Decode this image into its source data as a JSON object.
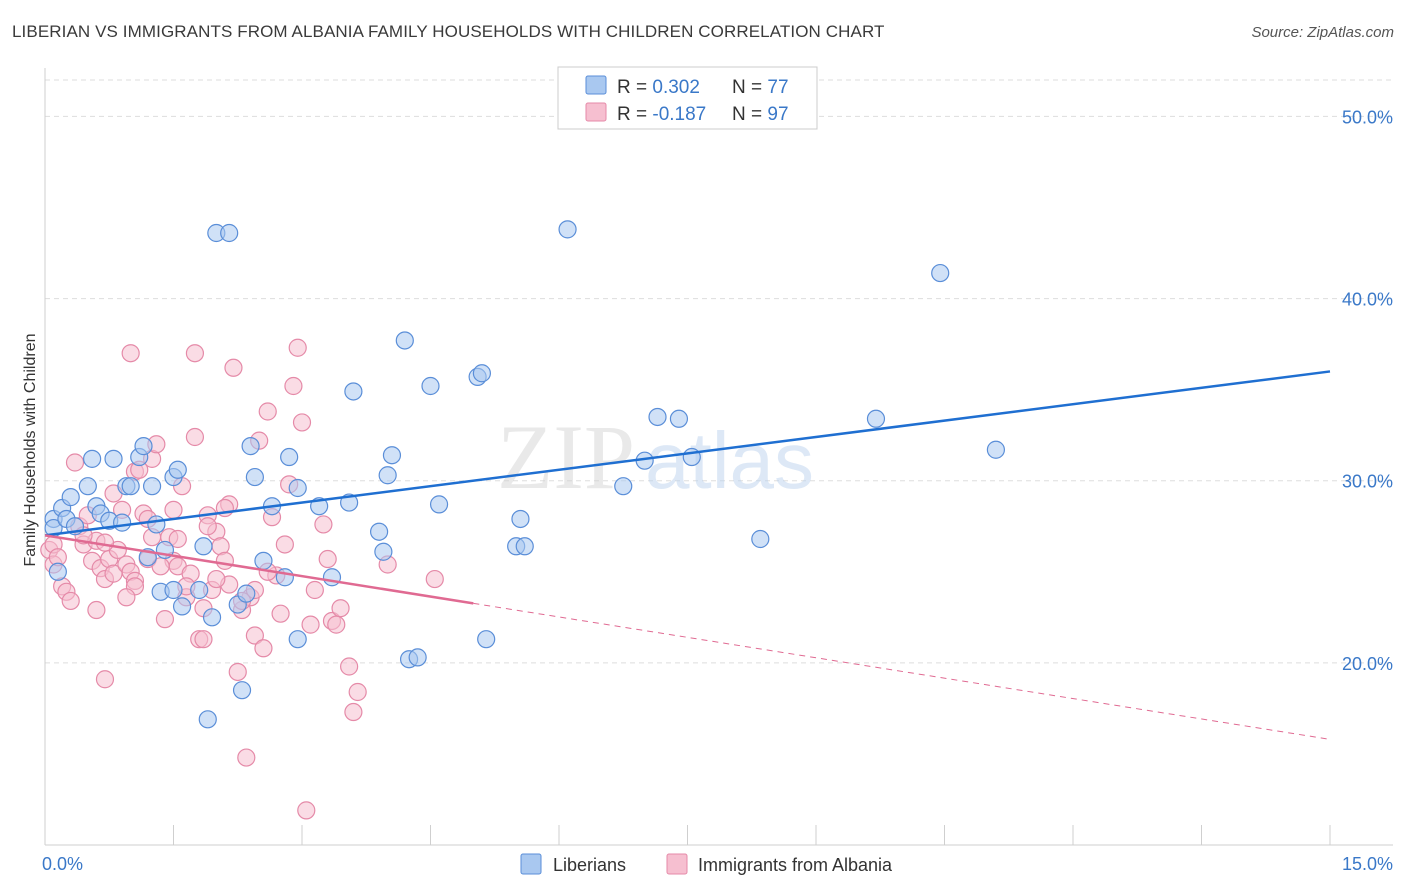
{
  "title": "LIBERIAN VS IMMIGRANTS FROM ALBANIA FAMILY HOUSEHOLDS WITH CHILDREN CORRELATION CHART",
  "source": "Source: ZipAtlas.com",
  "watermark": {
    "zip": "ZIP",
    "atlas": "atlas"
  },
  "colors": {
    "blue_fill": "#a9c8f0",
    "blue_stroke": "#5a8ed8",
    "blue_line": "#1f6fd1",
    "pink_fill": "#f6bfd0",
    "pink_stroke": "#e58aa8",
    "pink_line": "#e06a92",
    "axis_text": "#3a78c8",
    "grid": "#dddddd"
  },
  "legend": {
    "rows": [
      {
        "r_label": "R = ",
        "r_value": "0.302",
        "n_label": "N = ",
        "n_value": "77"
      },
      {
        "r_label": "R = ",
        "r_value": "-0.187",
        "n_label": "N = ",
        "n_value": "97"
      }
    ]
  },
  "chart_data": {
    "type": "scatter",
    "title": "LIBERIAN VS IMMIGRANTS FROM ALBANIA FAMILY HOUSEHOLDS WITH CHILDREN CORRELATION CHART",
    "xlabel": "",
    "ylabel": "Family Households with Children",
    "xlim": [
      0,
      15
    ],
    "ylim": [
      10,
      52
    ],
    "x_tick_labels": [
      "0.0%",
      "15.0%"
    ],
    "y_ticks": [
      20,
      30,
      40,
      50
    ],
    "y_tick_labels": [
      "20.0%",
      "30.0%",
      "40.0%",
      "50.0%"
    ],
    "grid": true,
    "legend_position": "top-center",
    "series": [
      {
        "name": "Liberians",
        "r": 0.302,
        "n": 77,
        "trend": {
          "x": [
            0,
            15
          ],
          "y": [
            27.0,
            36.0
          ],
          "dashed_from": null
        },
        "points": [
          [
            0.1,
            27.9
          ],
          [
            0.1,
            27.4
          ],
          [
            0.15,
            25.0
          ],
          [
            0.2,
            28.5
          ],
          [
            0.25,
            27.9
          ],
          [
            0.3,
            29.1
          ],
          [
            0.35,
            27.5
          ],
          [
            0.5,
            29.7
          ],
          [
            0.55,
            31.2
          ],
          [
            0.6,
            28.6
          ],
          [
            0.65,
            28.2
          ],
          [
            0.75,
            27.8
          ],
          [
            0.8,
            31.2
          ],
          [
            0.9,
            27.7
          ],
          [
            0.95,
            29.7
          ],
          [
            1.0,
            29.7
          ],
          [
            1.1,
            31.3
          ],
          [
            1.15,
            31.9
          ],
          [
            1.2,
            25.8
          ],
          [
            1.25,
            29.7
          ],
          [
            1.3,
            27.6
          ],
          [
            1.35,
            23.9
          ],
          [
            1.4,
            26.2
          ],
          [
            1.5,
            24.0
          ],
          [
            1.5,
            30.2
          ],
          [
            1.55,
            30.6
          ],
          [
            1.6,
            23.1
          ],
          [
            1.8,
            24.0
          ],
          [
            1.85,
            26.4
          ],
          [
            1.9,
            16.9
          ],
          [
            1.95,
            22.5
          ],
          [
            2.0,
            43.6
          ],
          [
            2.15,
            43.6
          ],
          [
            2.25,
            23.2
          ],
          [
            2.3,
            18.5
          ],
          [
            2.35,
            23.8
          ],
          [
            2.4,
            31.9
          ],
          [
            2.45,
            30.2
          ],
          [
            2.55,
            25.6
          ],
          [
            2.65,
            28.6
          ],
          [
            2.8,
            24.7
          ],
          [
            2.85,
            31.3
          ],
          [
            2.95,
            29.6
          ],
          [
            2.95,
            21.3
          ],
          [
            3.2,
            28.6
          ],
          [
            3.35,
            24.7
          ],
          [
            3.55,
            28.8
          ],
          [
            3.6,
            34.9
          ],
          [
            3.9,
            27.2
          ],
          [
            3.95,
            26.1
          ],
          [
            4.0,
            30.3
          ],
          [
            4.05,
            31.4
          ],
          [
            4.2,
            37.7
          ],
          [
            4.25,
            20.2
          ],
          [
            4.35,
            20.3
          ],
          [
            4.5,
            35.2
          ],
          [
            4.6,
            28.7
          ],
          [
            5.05,
            35.7
          ],
          [
            5.1,
            35.9
          ],
          [
            5.15,
            21.3
          ],
          [
            5.5,
            26.4
          ],
          [
            5.55,
            27.9
          ],
          [
            5.6,
            26.4
          ],
          [
            6.1,
            43.8
          ],
          [
            6.75,
            29.7
          ],
          [
            7.0,
            31.1
          ],
          [
            7.15,
            33.5
          ],
          [
            7.4,
            33.4
          ],
          [
            7.55,
            31.3
          ],
          [
            8.35,
            26.8
          ],
          [
            9.7,
            33.4
          ],
          [
            10.45,
            41.4
          ],
          [
            11.1,
            31.7
          ]
        ]
      },
      {
        "name": "Immigrants from Albania",
        "r": -0.187,
        "n": 97,
        "trend": {
          "x": [
            0,
            15
          ],
          "y": [
            27.0,
            15.8
          ],
          "dashed_from": 5.0
        },
        "points": [
          [
            0.05,
            26.2
          ],
          [
            0.1,
            26.5
          ],
          [
            0.1,
            25.4
          ],
          [
            0.15,
            25.8
          ],
          [
            0.2,
            24.2
          ],
          [
            0.25,
            23.9
          ],
          [
            0.3,
            23.4
          ],
          [
            0.35,
            31.0
          ],
          [
            0.4,
            27.5
          ],
          [
            0.45,
            26.5
          ],
          [
            0.5,
            28.1
          ],
          [
            0.55,
            25.6
          ],
          [
            0.6,
            26.7
          ],
          [
            0.65,
            25.2
          ],
          [
            0.7,
            24.6
          ],
          [
            0.7,
            19.1
          ],
          [
            0.75,
            25.7
          ],
          [
            0.8,
            24.9
          ],
          [
            0.85,
            26.2
          ],
          [
            0.9,
            28.4
          ],
          [
            0.95,
            25.4
          ],
          [
            1.0,
            25.0
          ],
          [
            1.05,
            24.5
          ],
          [
            1.05,
            24.2
          ],
          [
            1.05,
            30.5
          ],
          [
            1.15,
            28.2
          ],
          [
            1.2,
            25.7
          ],
          [
            1.25,
            26.9
          ],
          [
            1.25,
            31.2
          ],
          [
            1.3,
            32.0
          ],
          [
            1.4,
            22.4
          ],
          [
            1.45,
            26.9
          ],
          [
            1.5,
            25.6
          ],
          [
            1.5,
            28.4
          ],
          [
            1.55,
            25.3
          ],
          [
            1.6,
            29.7
          ],
          [
            1.65,
            23.6
          ],
          [
            1.7,
            24.9
          ],
          [
            1.75,
            32.4
          ],
          [
            1.75,
            37.0
          ],
          [
            1.8,
            21.3
          ],
          [
            1.85,
            23.0
          ],
          [
            1.9,
            28.1
          ],
          [
            1.95,
            24.0
          ],
          [
            2.0,
            27.2
          ],
          [
            2.05,
            26.4
          ],
          [
            2.1,
            25.6
          ],
          [
            2.15,
            24.3
          ],
          [
            2.15,
            28.7
          ],
          [
            2.2,
            36.2
          ],
          [
            2.25,
            19.5
          ],
          [
            2.3,
            22.9
          ],
          [
            2.35,
            14.8
          ],
          [
            2.4,
            23.6
          ],
          [
            2.45,
            21.5
          ],
          [
            2.5,
            32.2
          ],
          [
            2.55,
            20.8
          ],
          [
            2.6,
            33.8
          ],
          [
            2.65,
            28.0
          ],
          [
            2.7,
            24.8
          ],
          [
            2.75,
            22.7
          ],
          [
            2.8,
            26.5
          ],
          [
            2.85,
            29.8
          ],
          [
            2.9,
            35.2
          ],
          [
            2.95,
            37.3
          ],
          [
            3.0,
            33.2
          ],
          [
            3.05,
            11.9
          ],
          [
            3.1,
            22.1
          ],
          [
            3.15,
            24.0
          ],
          [
            3.25,
            27.6
          ],
          [
            3.3,
            25.7
          ],
          [
            3.35,
            22.3
          ],
          [
            3.4,
            22.1
          ],
          [
            3.45,
            23.0
          ],
          [
            3.55,
            19.8
          ],
          [
            3.6,
            17.3
          ],
          [
            3.65,
            18.4
          ],
          [
            4.0,
            25.4
          ],
          [
            4.55,
            24.6
          ],
          [
            1.1,
            30.6
          ],
          [
            0.8,
            29.3
          ],
          [
            1.0,
            37.0
          ],
          [
            0.6,
            22.9
          ],
          [
            0.95,
            23.6
          ],
          [
            1.35,
            25.3
          ],
          [
            1.65,
            24.2
          ],
          [
            1.9,
            27.5
          ],
          [
            2.1,
            28.5
          ],
          [
            2.3,
            23.4
          ],
          [
            1.55,
            26.8
          ],
          [
            1.2,
            27.9
          ],
          [
            0.7,
            26.6
          ],
          [
            0.45,
            27.0
          ],
          [
            2.6,
            25.0
          ],
          [
            2.45,
            24.0
          ],
          [
            1.85,
            21.3
          ],
          [
            2.0,
            24.6
          ]
        ]
      }
    ]
  },
  "bottom_legend": {
    "items": [
      "Liberians",
      "Immigrants from Albania"
    ]
  }
}
